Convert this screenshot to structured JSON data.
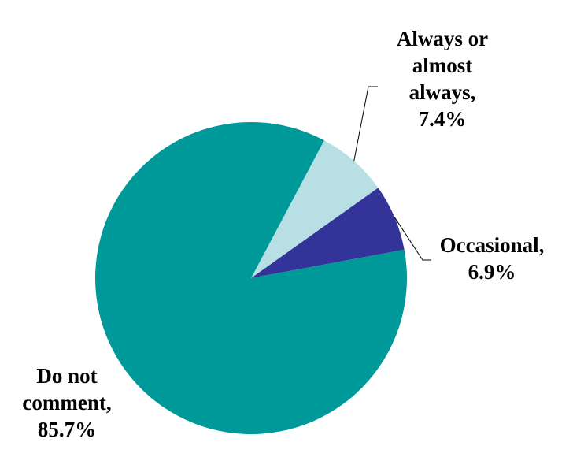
{
  "chart_data": {
    "type": "pie",
    "start_angle_deg": 62,
    "direction": "clockwise",
    "slices": [
      {
        "label_lines": [
          "Always or",
          "almost",
          "always,",
          "7.4%"
        ],
        "value": 7.4,
        "color": "#B8E0E4"
      },
      {
        "label_lines": [
          "Occasional,",
          "6.9%"
        ],
        "value": 6.9,
        "color": "#333399"
      },
      {
        "label_lines": [
          "Do not",
          "comment,",
          "85.7%"
        ],
        "value": 85.7,
        "color": "#009999"
      }
    ],
    "leader_line_color": "#000000"
  }
}
